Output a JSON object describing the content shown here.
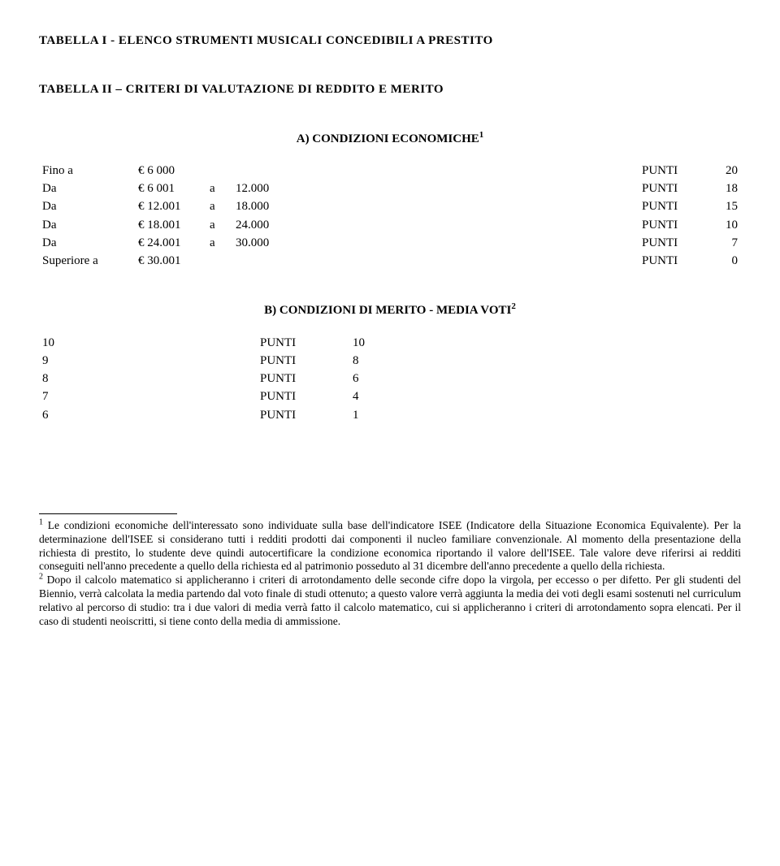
{
  "title1": "TABELLA I - ELENCO STRUMENTI MUSICALI CONCEDIBILI A PRESTITO",
  "title2": "TABELLA II – CRITERI DI VALUTAZIONE DI REDDITO E MERITO",
  "sectionA": {
    "heading": "A) CONDIZIONI ECONOMICHE",
    "sup": "1",
    "rows": [
      {
        "c0": "Fino a",
        "c1": "€",
        "c2": "",
        "c3": "6 000",
        "c5": "PUNTI",
        "c6": "20"
      },
      {
        "c0": "Da",
        "c1": "€",
        "c2": "",
        "c3": "6 001",
        "c3b": "a",
        "c3c": "12.000",
        "c5": "PUNTI",
        "c6": "18"
      },
      {
        "c0": "Da",
        "c1": "€",
        "c2": "",
        "c3": "12.001",
        "c3b": "a",
        "c3c": "18.000",
        "c5": "PUNTI",
        "c6": "15"
      },
      {
        "c0": "Da",
        "c1": "€",
        "c2": "",
        "c3": "18.001",
        "c3b": "a",
        "c3c": "24.000",
        "c5": "PUNTI",
        "c6": "10"
      },
      {
        "c0": "Da",
        "c1": "€",
        "c2": "",
        "c3": "24.001",
        "c3b": "a",
        "c3c": "30.000",
        "c5": "PUNTI",
        "c6": "7"
      },
      {
        "c0": "Superiore a",
        "c1": "€",
        "c2": "",
        "c3": "30.001",
        "c5": "PUNTI",
        "c6": "0"
      }
    ]
  },
  "sectionB": {
    "heading": "B) CONDIZIONI DI MERITO - MEDIA VOTI",
    "sup": "2",
    "rows": [
      {
        "b0": "10",
        "b1": "PUNTI",
        "b2": "10"
      },
      {
        "b0": "9",
        "b1": "PUNTI",
        "b2": "8"
      },
      {
        "b0": "8",
        "b1": "PUNTI",
        "b2": "6"
      },
      {
        "b0": "7",
        "b1": "PUNTI",
        "b2": "4"
      },
      {
        "b0": "6",
        "b1": "PUNTI",
        "b2": "1"
      }
    ]
  },
  "footnotes": {
    "fn1_num": "1",
    "fn1_text": " Le condizioni economiche dell'interessato sono individuate sulla base dell'indicatore ISEE (Indicatore della Situazione Economica Equivalente). Per la determinazione dell'ISEE si considerano tutti i redditi prodotti dai componenti il nucleo familiare convenzionale. Al momento della presentazione della richiesta di prestito, lo studente deve quindi autocertificare la condizione economica riportando il valore dell'ISEE. Tale valore deve riferirsi ai redditi conseguiti nell'anno precedente a quello della richiesta ed al patrimonio posseduto al 31 dicembre dell'anno precedente a quello della richiesta.",
    "fn2_num": "2",
    "fn2_text": " Dopo il calcolo matematico si applicheranno i criteri di arrotondamento delle seconde cifre dopo la virgola, per eccesso o per difetto. Per gli studenti del Biennio, verrà calcolata la media partendo dal voto finale di studi ottenuto; a questo valore verrà aggiunta la media dei voti degli esami sostenuti nel curriculum relativo al percorso di studio: tra i due valori di media verrà fatto il calcolo matematico, cui si applicheranno i criteri di arrotondamento sopra elencati. Per il caso di studenti neoiscritti, si tiene conto della media di ammissione."
  }
}
